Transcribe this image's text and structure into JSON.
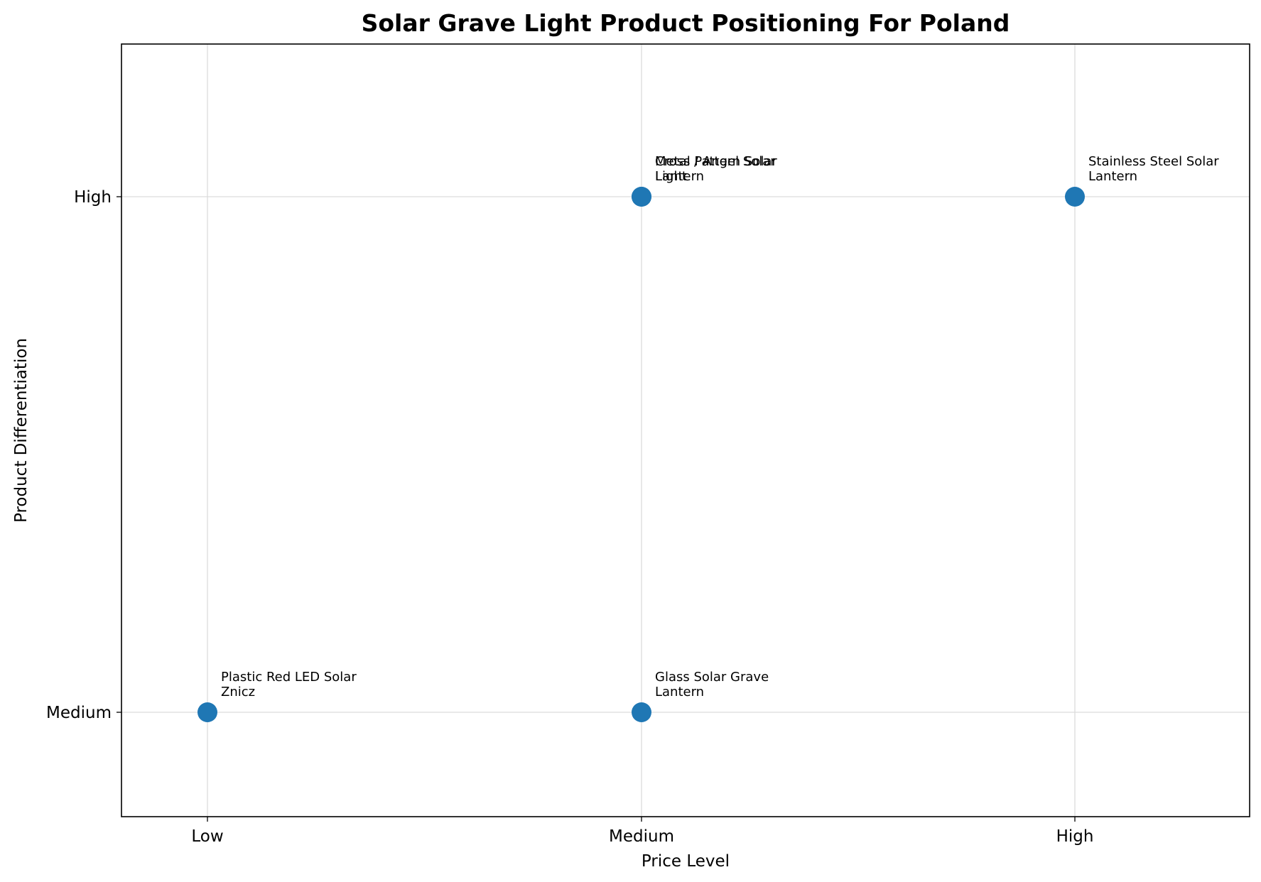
{
  "chart_data": {
    "type": "scatter",
    "title": "Solar Grave Light Product Positioning For Poland",
    "xlabel": "Price Level",
    "ylabel": "Product Differentiation",
    "x_categories": [
      "Low",
      "Medium",
      "High"
    ],
    "y_categories": [
      "Medium",
      "High"
    ],
    "grid": true,
    "marker_color": "#1f77b4",
    "points": [
      {
        "label": "Plastic Red LED Solar Znicz",
        "label_lines": [
          "Plastic Red LED Solar",
          "Znicz"
        ],
        "x": "Low",
        "y": "Medium"
      },
      {
        "label": "Glass Solar Grave Lantern",
        "label_lines": [
          "Glass Solar Grave",
          "Lantern"
        ],
        "x": "Medium",
        "y": "Medium"
      },
      {
        "label": "Metal Pattern Solar Lantern",
        "label_lines": [
          "Metal Pattern Solar",
          "Lantern"
        ],
        "x": "Medium",
        "y": "High"
      },
      {
        "label": "Cross / Angel Solar Light",
        "label_lines": [
          "Cross / Angel Solar",
          "Light"
        ],
        "x": "Medium",
        "y": "High"
      },
      {
        "label": "Stainless Steel Solar Lantern",
        "label_lines": [
          "Stainless Steel Solar",
          "Lantern"
        ],
        "x": "High",
        "y": "High"
      }
    ]
  }
}
